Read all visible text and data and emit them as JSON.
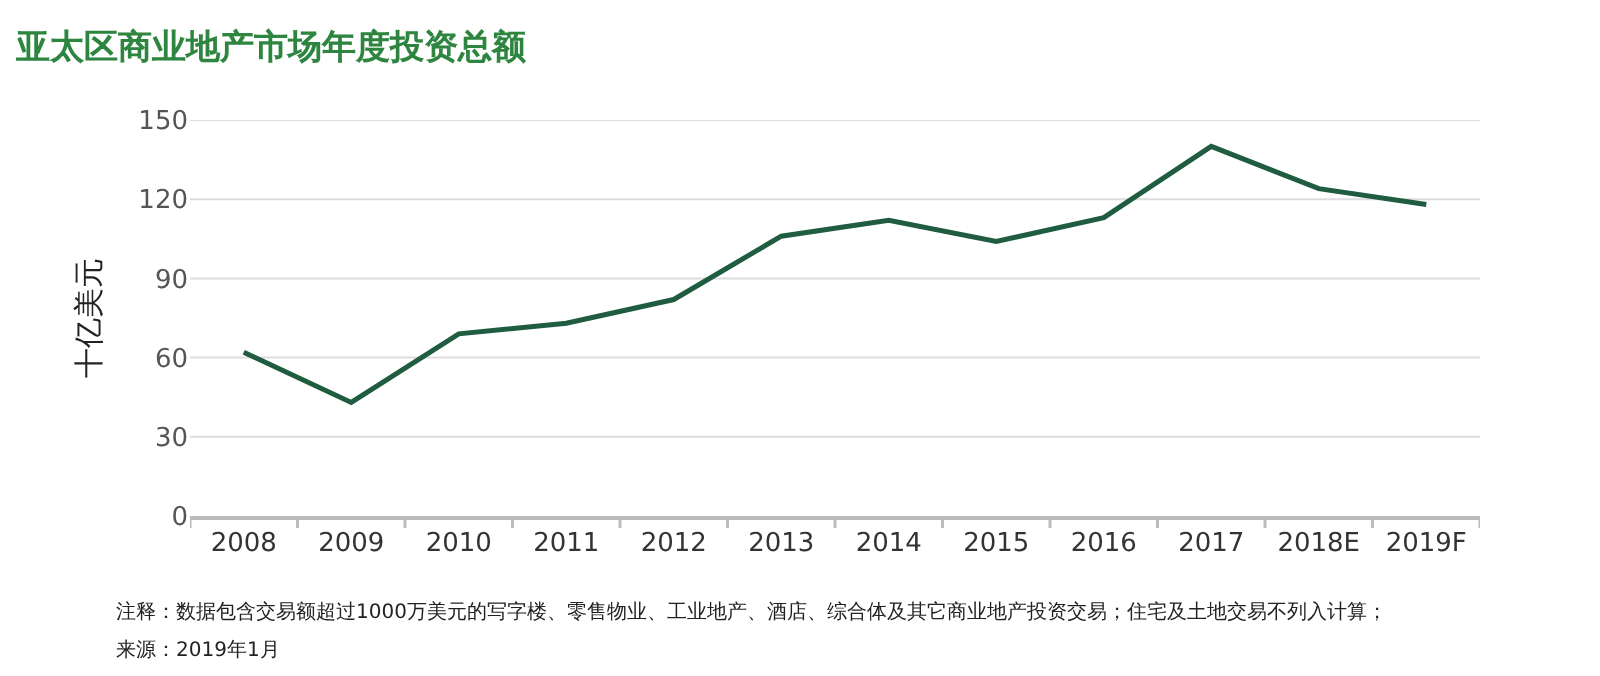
{
  "chart_data": {
    "type": "line",
    "title": "亚太区商业地产市场年度投资总额",
    "ylabel": "十亿美元",
    "categories": [
      "2008",
      "2009",
      "2010",
      "2011",
      "2012",
      "2013",
      "2014",
      "2015",
      "2016",
      "2017",
      "2018E",
      "2019F"
    ],
    "series": [
      {
        "color": "#1f5c40",
        "values": [
          62,
          43,
          69,
          73,
          82,
          106,
          112,
          104,
          113,
          140,
          124,
          118
        ]
      }
    ],
    "ylim": [
      0,
      150
    ],
    "yticks": [
      0,
      30,
      60,
      90,
      120,
      150
    ],
    "grid": "y",
    "marker": "none",
    "line_style": "solid",
    "annotations": [
      "注释：数据包含交易额超过1000万美元的写字楼、零售物业、工业地产、酒店、综合体及其它商业地产投资交易；住宅及土地交易不列入计算；",
      "来源：2019年1月"
    ]
  }
}
